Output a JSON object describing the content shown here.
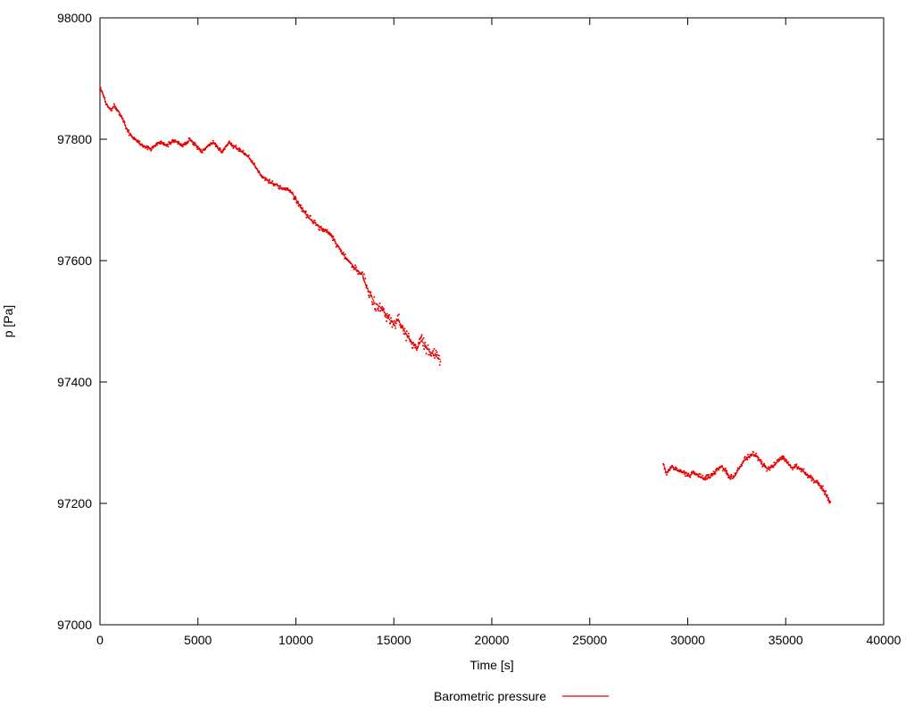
{
  "chart_data": {
    "type": "scatter",
    "title": "",
    "xlabel": "Time [s]",
    "ylabel": "p [Pa]",
    "xlim": [
      0,
      40000
    ],
    "ylim": [
      97000,
      98000
    ],
    "xticks": [
      0,
      5000,
      10000,
      15000,
      20000,
      25000,
      30000,
      35000,
      40000
    ],
    "yticks": [
      97000,
      97200,
      97400,
      97600,
      97800,
      98000
    ],
    "grid": false,
    "legend": {
      "label": "Barometric pressure",
      "position": "bottom-center"
    },
    "series_color": "#e80000",
    "series": [
      {
        "name": "Barometric pressure (segment 1)",
        "points": [
          [
            0,
            97885
          ],
          [
            150,
            97875
          ],
          [
            300,
            97860
          ],
          [
            450,
            97852
          ],
          [
            600,
            97850
          ],
          [
            750,
            97856
          ],
          [
            900,
            97848
          ],
          [
            1050,
            97840
          ],
          [
            1200,
            97830
          ],
          [
            1350,
            97818
          ],
          [
            1500,
            97810
          ],
          [
            1650,
            97804
          ],
          [
            1800,
            97800
          ],
          [
            2000,
            97794
          ],
          [
            2200,
            97790
          ],
          [
            2400,
            97786
          ],
          [
            2600,
            97784
          ],
          [
            2800,
            97790
          ],
          [
            3000,
            97794
          ],
          [
            3200,
            97793
          ],
          [
            3400,
            97789
          ],
          [
            3600,
            97794
          ],
          [
            3800,
            97799
          ],
          [
            4000,
            97794
          ],
          [
            4200,
            97789
          ],
          [
            4400,
            97794
          ],
          [
            4600,
            97800
          ],
          [
            4800,
            97793
          ],
          [
            5000,
            97786
          ],
          [
            5200,
            97780
          ],
          [
            5400,
            97786
          ],
          [
            5600,
            97791
          ],
          [
            5800,
            97795
          ],
          [
            6000,
            97786
          ],
          [
            6200,
            97779
          ],
          [
            6400,
            97788
          ],
          [
            6600,
            97794
          ],
          [
            6800,
            97789
          ],
          [
            7000,
            97785
          ],
          [
            7200,
            97781
          ],
          [
            7400,
            97776
          ],
          [
            7600,
            97770
          ],
          [
            7800,
            97761
          ],
          [
            8000,
            97751
          ],
          [
            8200,
            97742
          ],
          [
            8400,
            97736
          ],
          [
            8600,
            97731
          ],
          [
            8800,
            97727
          ],
          [
            9000,
            97726
          ],
          [
            9200,
            97721
          ],
          [
            9400,
            97717
          ],
          [
            9600,
            97716
          ],
          [
            9800,
            97711
          ],
          [
            10000,
            97701
          ],
          [
            10200,
            97691
          ],
          [
            10400,
            97681
          ],
          [
            10600,
            97672
          ],
          [
            10800,
            97666
          ],
          [
            11000,
            97661
          ],
          [
            11200,
            97656
          ],
          [
            11400,
            97651
          ],
          [
            11600,
            97648
          ],
          [
            11800,
            97641
          ],
          [
            12000,
            97631
          ],
          [
            12200,
            97621
          ],
          [
            12400,
            97611
          ],
          [
            12600,
            97601
          ],
          [
            12800,
            97596
          ],
          [
            13000,
            97588
          ],
          [
            13200,
            97582
          ],
          [
            13400,
            97577
          ],
          [
            13600,
            97556
          ],
          [
            13800,
            97546
          ],
          [
            14000,
            97531
          ],
          [
            14200,
            97526
          ],
          [
            14400,
            97521
          ],
          [
            14600,
            97511
          ],
          [
            14800,
            97502
          ],
          [
            15000,
            97496
          ],
          [
            15200,
            97503
          ],
          [
            15400,
            97492
          ],
          [
            15600,
            97481
          ],
          [
            15800,
            97471
          ],
          [
            16000,
            97462
          ],
          [
            16200,
            97457
          ],
          [
            16400,
            97468
          ],
          [
            16600,
            97461
          ],
          [
            16800,
            97451
          ],
          [
            17000,
            97446
          ],
          [
            17200,
            97441
          ],
          [
            17400,
            97436
          ]
        ]
      },
      {
        "name": "Barometric pressure (segment 2)",
        "points": [
          [
            28750,
            97266
          ],
          [
            28900,
            97250
          ],
          [
            29050,
            97256
          ],
          [
            29200,
            97261
          ],
          [
            29350,
            97257
          ],
          [
            29500,
            97253
          ],
          [
            29700,
            97251
          ],
          [
            29900,
            97250
          ],
          [
            30100,
            97246
          ],
          [
            30300,
            97251
          ],
          [
            30500,
            97246
          ],
          [
            30700,
            97243
          ],
          [
            30900,
            97241
          ],
          [
            31100,
            97243
          ],
          [
            31300,
            97248
          ],
          [
            31500,
            97256
          ],
          [
            31700,
            97261
          ],
          [
            31900,
            97256
          ],
          [
            32100,
            97246
          ],
          [
            32300,
            97241
          ],
          [
            32500,
            97251
          ],
          [
            32700,
            97261
          ],
          [
            32900,
            97271
          ],
          [
            33100,
            97276
          ],
          [
            33300,
            97281
          ],
          [
            33500,
            97279
          ],
          [
            33700,
            97269
          ],
          [
            33900,
            97261
          ],
          [
            34100,
            97256
          ],
          [
            34300,
            97261
          ],
          [
            34500,
            97266
          ],
          [
            34700,
            97272
          ],
          [
            34900,
            97276
          ],
          [
            35100,
            97266
          ],
          [
            35300,
            97259
          ],
          [
            35500,
            97261
          ],
          [
            35700,
            97257
          ],
          [
            35900,
            97253
          ],
          [
            36100,
            97246
          ],
          [
            36300,
            97241
          ],
          [
            36500,
            97236
          ],
          [
            36700,
            97231
          ],
          [
            36900,
            97224
          ],
          [
            37100,
            97212
          ],
          [
            37300,
            97201
          ]
        ]
      }
    ]
  }
}
